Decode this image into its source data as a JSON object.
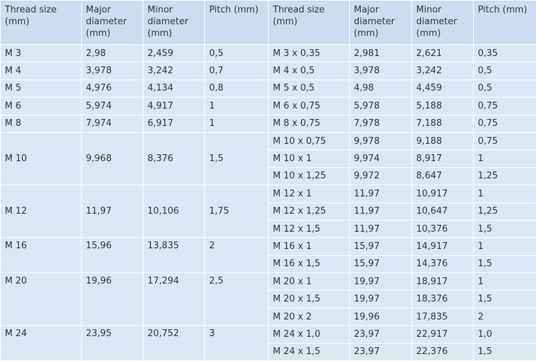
{
  "table": {
    "header": [
      "Thread size (mm)",
      "Major diameter (mm)",
      "Minor diameter (mm)",
      "Pitch (mm)",
      "Thread size (mm)",
      "Major diameter (mm)",
      "Minor diameter (mm)",
      "Pitch (mm)"
    ],
    "groups": [
      {
        "coarse": [
          "M 3",
          "2,98",
          "2,459",
          "0,5"
        ],
        "fine": [
          [
            "M 3 x 0,35",
            "2,981",
            "2,621",
            "0,35"
          ]
        ]
      },
      {
        "coarse": [
          "M 4",
          "3,978",
          "3,242",
          "0,7"
        ],
        "fine": [
          [
            "M 4 x 0,5",
            "3,978",
            "3,242",
            "0,5"
          ]
        ]
      },
      {
        "coarse": [
          "M 5",
          "4,976",
          "4,134",
          "0,8"
        ],
        "fine": [
          [
            "M 5 x 0,5",
            "4,98",
            "4,459",
            "0,5"
          ]
        ]
      },
      {
        "coarse": [
          "M 6",
          "5,974",
          "4,917",
          "1"
        ],
        "fine": [
          [
            "M 6 x 0,75",
            "5,978",
            "5,188",
            "0,75"
          ]
        ]
      },
      {
        "coarse": [
          "M 8",
          "7,974",
          "6,917",
          "1"
        ],
        "fine": [
          [
            "M 8 x 0,75",
            "7,978",
            "7,188",
            "0,75"
          ]
        ]
      },
      {
        "coarse": [
          "M 10",
          "9,968",
          "8,376",
          "1,5"
        ],
        "fine": [
          [
            "M 10 x 0,75",
            "9,978",
            "9,188",
            "0,75"
          ],
          [
            "M 10 x 1",
            "9,974",
            "8,917",
            "1"
          ],
          [
            "M 10 x 1,25",
            "9,972",
            "8,647",
            "1,25"
          ]
        ]
      },
      {
        "coarse": [
          "M 12",
          "11,97",
          "10,106",
          "1,75"
        ],
        "fine": [
          [
            "M 12 x 1",
            "11,97",
            "10,917",
            "1"
          ],
          [
            "M 12 x 1,25",
            "11,97",
            "10,647",
            "1,25"
          ],
          [
            "M 12 x 1,5",
            "11,97",
            "10,376",
            "1,5"
          ]
        ]
      },
      {
        "coarse": [
          "M 16",
          "15,96",
          "13,835",
          "2"
        ],
        "fine": [
          [
            "M 16 x 1",
            "15,97",
            "14,917",
            "1"
          ],
          [
            "M 16 x 1,5",
            "15,97",
            "14,376",
            "1,5"
          ]
        ]
      },
      {
        "coarse": [
          "M 20",
          "19,96",
          "17,294",
          "2,5"
        ],
        "fine": [
          [
            "M 20 x 1",
            "19,97",
            "18,917",
            "1"
          ],
          [
            "M 20 x 1,5",
            "19,97",
            "18,376",
            "1,5"
          ],
          [
            "M 20 x 2",
            "19,96",
            "17,835",
            "2"
          ]
        ]
      },
      {
        "coarse": [
          "M 24",
          "23,95",
          "20,752",
          "3"
        ],
        "fine": [
          [
            "M 24 x 1,0",
            "23,97",
            "22,917",
            "1,0"
          ],
          [
            "M 24 x 1,5",
            "23,97",
            "22,376",
            "1,5"
          ]
        ]
      }
    ]
  }
}
